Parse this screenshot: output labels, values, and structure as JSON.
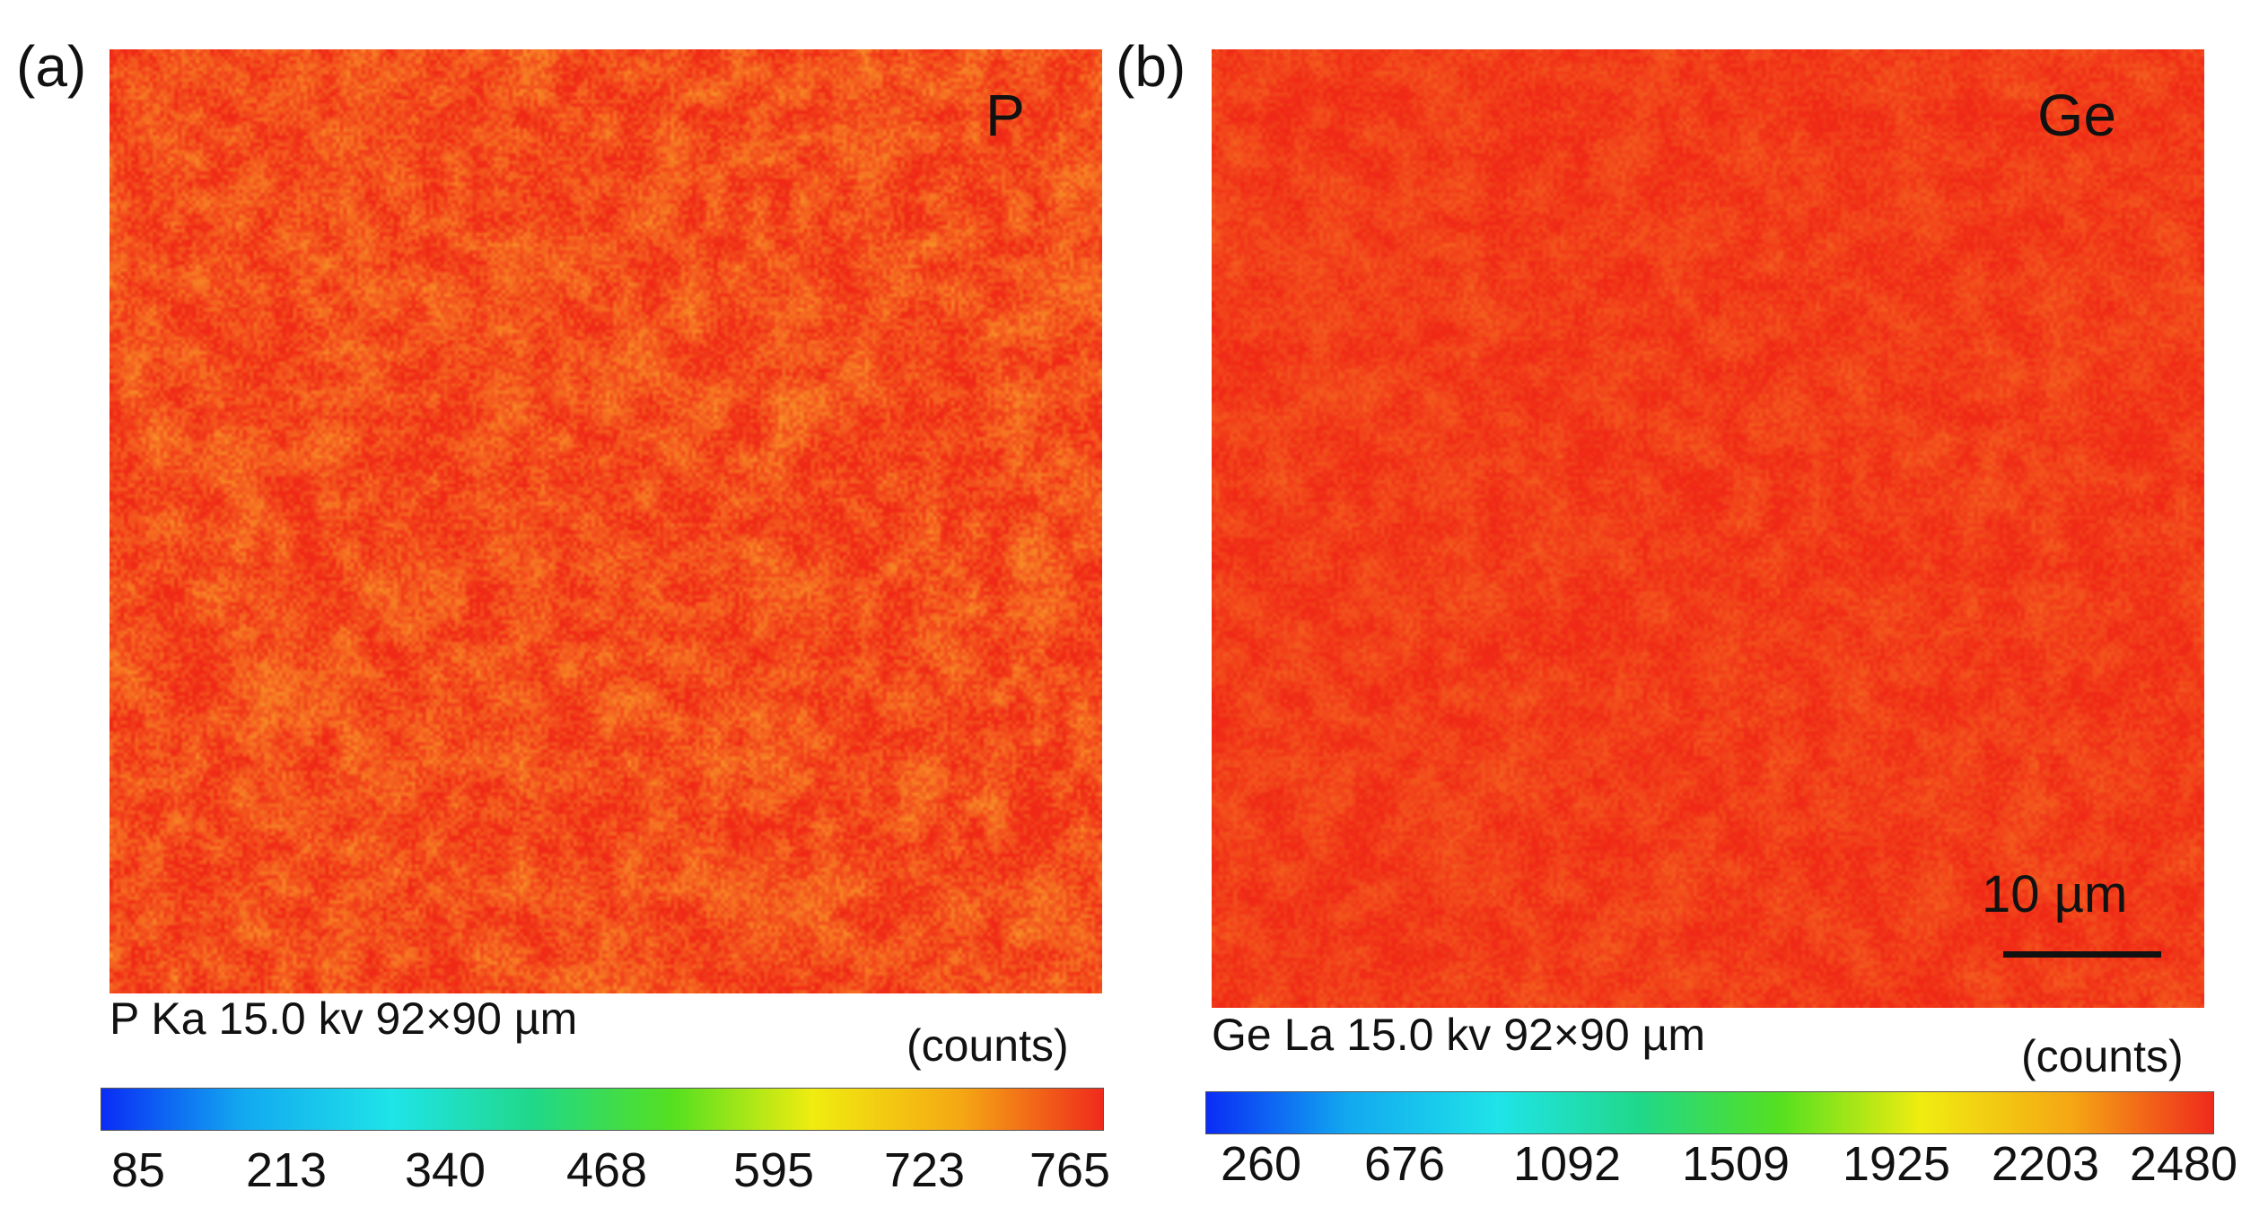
{
  "panels": [
    {
      "letter": "(a)",
      "element": "P",
      "caption": "P Ka 15.0 kv 92×90 µm",
      "units": "(counts)",
      "colorbar_ticks": [
        "85",
        "213",
        "340",
        "468",
        "595",
        "723",
        "765"
      ]
    },
    {
      "letter": "(b)",
      "element": "Ge",
      "caption": "Ge La 15.0 kv 92×90 µm",
      "units": "(counts)",
      "colorbar_ticks": [
        "260",
        "676",
        "1092",
        "1509",
        "1925",
        "2203",
        "2480"
      ],
      "scale_bar_label": "10 µm"
    }
  ],
  "colors": {
    "map_base": "#f23a1e",
    "colorbar": [
      "#0a2cf5",
      "#12a8f0",
      "#1fe4e8",
      "#20d88a",
      "#55e020",
      "#f0ec10",
      "#f5a614",
      "#ef2a1c"
    ]
  }
}
